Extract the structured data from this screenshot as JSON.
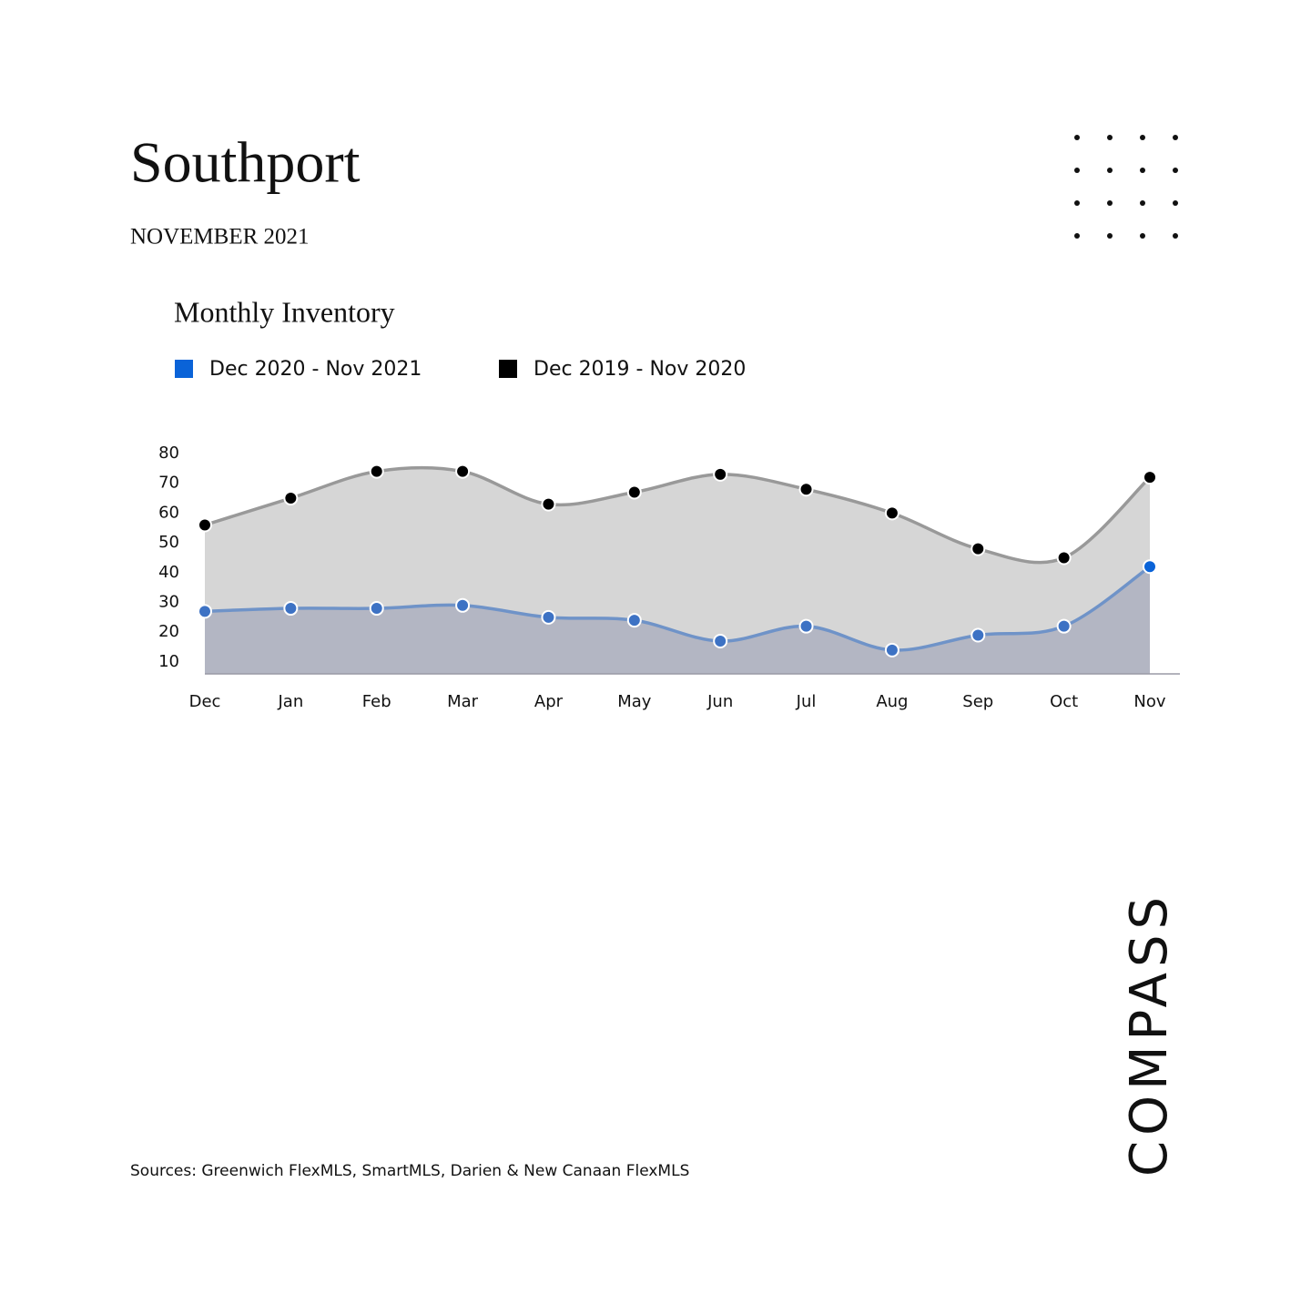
{
  "header": {
    "title": "Southport",
    "date": "NOVEMBER 2021"
  },
  "chart_data": {
    "type": "area",
    "title": "Monthly Inventory",
    "categories": [
      "Dec",
      "Jan",
      "Feb",
      "Mar",
      "Apr",
      "May",
      "Jun",
      "Jul",
      "Aug",
      "Sep",
      "Oct",
      "Nov"
    ],
    "series": [
      {
        "name": "Dec 2020 - Nov 2021",
        "color": "#0a63d8",
        "values": [
          27,
          28,
          28,
          29,
          25,
          24,
          17,
          22,
          14,
          19,
          22,
          42
        ]
      },
      {
        "name": "Dec 2019 - Nov 2020",
        "color": "#000000",
        "values": [
          56,
          65,
          74,
          74,
          63,
          67,
          73,
          68,
          60,
          48,
          45,
          72
        ]
      }
    ],
    "ylim": [
      6,
      80
    ],
    "yticks": [
      10,
      20,
      30,
      40,
      50,
      60,
      70,
      80
    ],
    "grid": false
  },
  "footer": {
    "source": "Sources: Greenwich FlexMLS, SmartMLS, Darien & New Canaan FlexMLS",
    "brand": "COMPASS"
  }
}
